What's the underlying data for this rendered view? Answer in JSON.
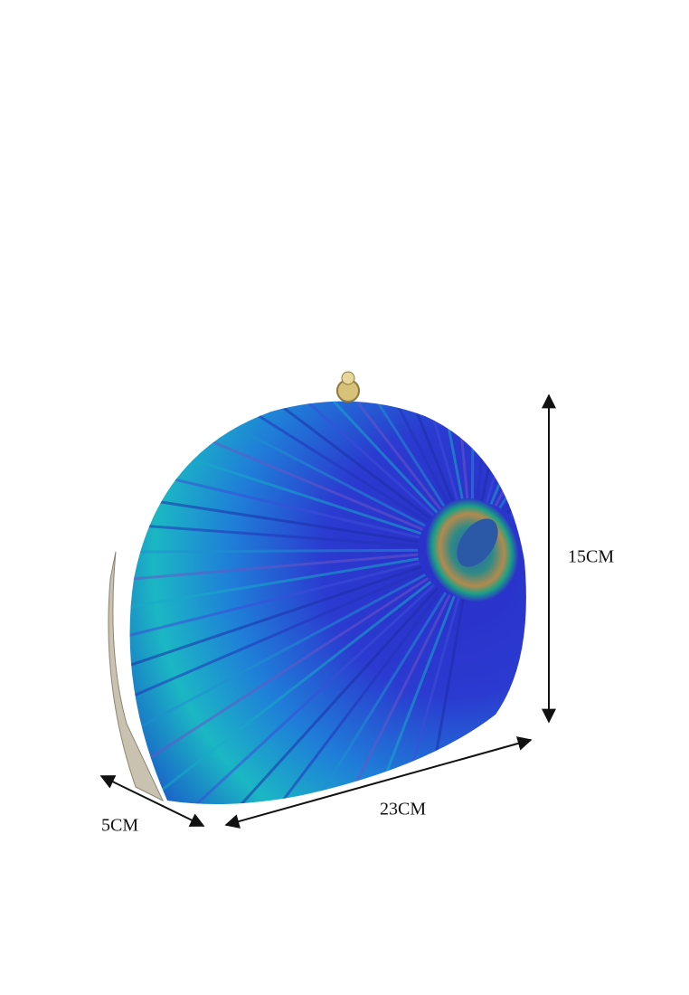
{
  "dimensions": {
    "height": "15CM",
    "width": "23CM",
    "depth": "5CM"
  }
}
